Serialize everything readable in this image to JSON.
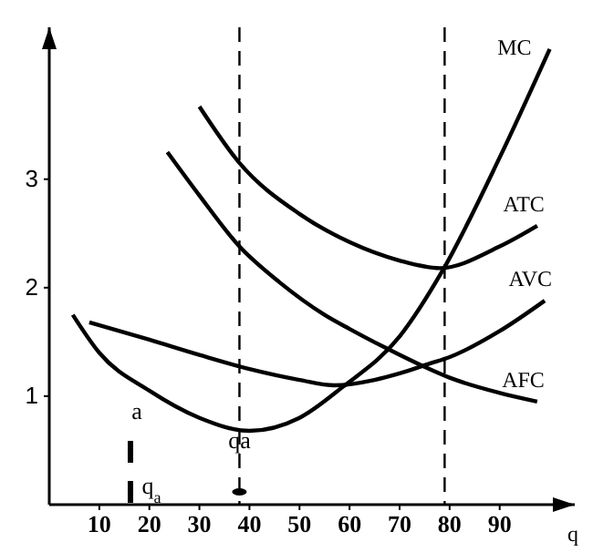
{
  "chart_data": {
    "type": "line",
    "xlabel": "q",
    "xlim": [
      0,
      105
    ],
    "ylim": [
      0,
      4.4
    ],
    "xticks": [
      10,
      20,
      30,
      40,
      50,
      60,
      70,
      80,
      90
    ],
    "yticks": [
      1,
      2,
      3
    ],
    "grid": false,
    "legend": false,
    "marker": "none",
    "line_style": "solid",
    "series": [
      {
        "name": "MC",
        "color": "#000000",
        "x": [
          4.7,
          10,
          20,
          30,
          40,
          50,
          58.5,
          70,
          78.5,
          90,
          100
        ],
        "values": [
          1.75,
          1.4,
          1.05,
          0.8,
          0.68,
          0.8,
          1.08,
          1.55,
          2.15,
          3.2,
          4.2
        ]
      },
      {
        "name": "ATC",
        "color": "#000000",
        "x": [
          30,
          38,
          50,
          60,
          70,
          78,
          90,
          97.5
        ],
        "values": [
          3.67,
          3.15,
          2.68,
          2.42,
          2.25,
          2.18,
          2.38,
          2.57
        ]
      },
      {
        "name": "AVC",
        "color": "#000000",
        "x": [
          8,
          20,
          30,
          40,
          50,
          57,
          65,
          70,
          76,
          80,
          90,
          99
        ],
        "values": [
          1.68,
          1.52,
          1.38,
          1.25,
          1.15,
          1.1,
          1.15,
          1.21,
          1.3,
          1.36,
          1.6,
          1.88
        ]
      },
      {
        "name": "AFC",
        "color": "#000000",
        "x": [
          23.6,
          30,
          38,
          46,
          55,
          60,
          67,
          75,
          80,
          90,
          97.5
        ],
        "values": [
          3.25,
          2.85,
          2.38,
          2.05,
          1.75,
          1.62,
          1.45,
          1.27,
          1.17,
          1.03,
          0.95
        ]
      }
    ],
    "ref_lines": [
      {
        "axis": "x",
        "value": 38,
        "line_style": "dashed",
        "color": "#000000"
      },
      {
        "axis": "x",
        "value": 79,
        "line_style": "dashed",
        "color": "#000000"
      }
    ],
    "annotations": [
      "a",
      {
        "text": "qa",
        "x": 38,
        "y": 0.52
      },
      "q$_{a}$"
    ]
  }
}
